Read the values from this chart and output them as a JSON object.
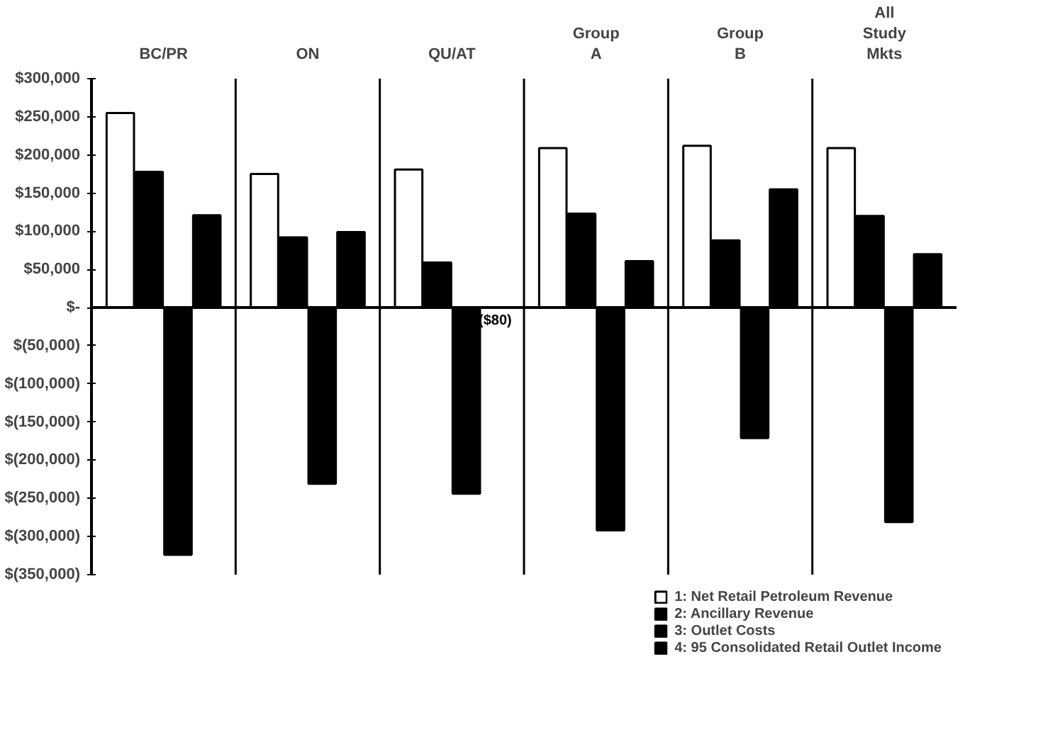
{
  "chart_data": {
    "type": "bar",
    "categories": [
      "BC/PR",
      "ON",
      "QU/AT",
      "Group A",
      "Group B",
      "All Study Mkts"
    ],
    "series": [
      {
        "name": "1: Net Retail Petroleum Revenue",
        "color": "#ffffff",
        "values": [
          255000,
          175000,
          181000,
          209000,
          212000,
          209000
        ]
      },
      {
        "name": "2: Ancillary Revenue",
        "color": "#000000",
        "values": [
          178000,
          92000,
          59000,
          123000,
          88000,
          120000
        ]
      },
      {
        "name": "3: Outlet Costs",
        "color": "#000000",
        "values": [
          -324000,
          -231000,
          -244000,
          -292000,
          -171000,
          -281000
        ]
      },
      {
        "name": "4: 95 Consolidated Retail Outlet Income",
        "color": "#000000",
        "values": [
          121000,
          99000,
          -80,
          61000,
          155000,
          70000
        ],
        "value_labels": [
          null,
          null,
          "($80)",
          null,
          null,
          null
        ]
      }
    ],
    "ylim": [
      -350000,
      300000
    ],
    "yticks": [
      {
        "value": 300000,
        "label": "$300,000"
      },
      {
        "value": 250000,
        "label": "$250,000"
      },
      {
        "value": 200000,
        "label": "$200,000"
      },
      {
        "value": 150000,
        "label": "$150,000"
      },
      {
        "value": 100000,
        "label": "$100,000"
      },
      {
        "value": 50000,
        "label": "$50,000"
      },
      {
        "value": 0,
        "label": "$-"
      },
      {
        "value": -50000,
        "label": "$(50,000)"
      },
      {
        "value": -100000,
        "label": "$(100,000)"
      },
      {
        "value": -150000,
        "label": "$(150,000)"
      },
      {
        "value": -200000,
        "label": "$(200,000)"
      },
      {
        "value": -250000,
        "label": "$(250,000)"
      },
      {
        "value": -300000,
        "label": "$(300,000)"
      },
      {
        "value": -350000,
        "label": "$(350,000)"
      }
    ],
    "grid": "x",
    "legend": "bottom"
  }
}
